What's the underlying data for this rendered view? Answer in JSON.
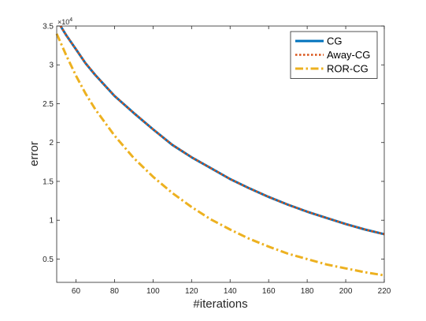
{
  "chart_data": {
    "type": "line",
    "xlabel": "#iterations",
    "ylabel": "error",
    "xlim": [
      50,
      220
    ],
    "ylim": [
      0.2,
      3.5
    ],
    "y_multiplier_base": "×10",
    "y_multiplier_exp": "4",
    "xticks": [
      60,
      80,
      100,
      120,
      140,
      160,
      180,
      200,
      220
    ],
    "yticks": [
      0.5,
      1,
      1.5,
      2,
      2.5,
      3,
      3.5
    ],
    "ytick_labels": [
      "0.5",
      "1",
      "1.5",
      "2",
      "2.5",
      "3",
      "3.5"
    ],
    "legend_position": "top-right",
    "grid": false,
    "series": [
      {
        "name": "CG",
        "color": "#0072BD",
        "style": "solid",
        "x": [
          52,
          55,
          60,
          65,
          70,
          80,
          90,
          100,
          110,
          120,
          130,
          140,
          150,
          160,
          170,
          180,
          190,
          200,
          210,
          220
        ],
        "values": [
          3.5,
          3.38,
          3.2,
          3.02,
          2.87,
          2.6,
          2.38,
          2.17,
          1.97,
          1.81,
          1.67,
          1.53,
          1.41,
          1.3,
          1.2,
          1.11,
          1.03,
          0.95,
          0.88,
          0.82
        ]
      },
      {
        "name": "Away-CG",
        "color": "#D95319",
        "style": "dotted",
        "x": [
          52,
          55,
          60,
          65,
          70,
          80,
          90,
          100,
          110,
          120,
          130,
          140,
          150,
          160,
          170,
          180,
          190,
          200,
          210,
          220
        ],
        "values": [
          3.5,
          3.38,
          3.2,
          3.02,
          2.87,
          2.6,
          2.38,
          2.17,
          1.97,
          1.81,
          1.67,
          1.53,
          1.41,
          1.3,
          1.2,
          1.11,
          1.03,
          0.95,
          0.88,
          0.82
        ]
      },
      {
        "name": "ROR-CG",
        "color": "#EDB120",
        "style": "dashdot",
        "x": [
          50,
          55,
          60,
          65,
          70,
          80,
          90,
          100,
          110,
          120,
          130,
          140,
          150,
          160,
          170,
          180,
          190,
          200,
          210,
          220
        ],
        "values": [
          3.4,
          3.12,
          2.86,
          2.63,
          2.43,
          2.09,
          1.8,
          1.56,
          1.35,
          1.17,
          1.01,
          0.88,
          0.76,
          0.66,
          0.57,
          0.5,
          0.43,
          0.38,
          0.33,
          0.29
        ]
      }
    ]
  }
}
